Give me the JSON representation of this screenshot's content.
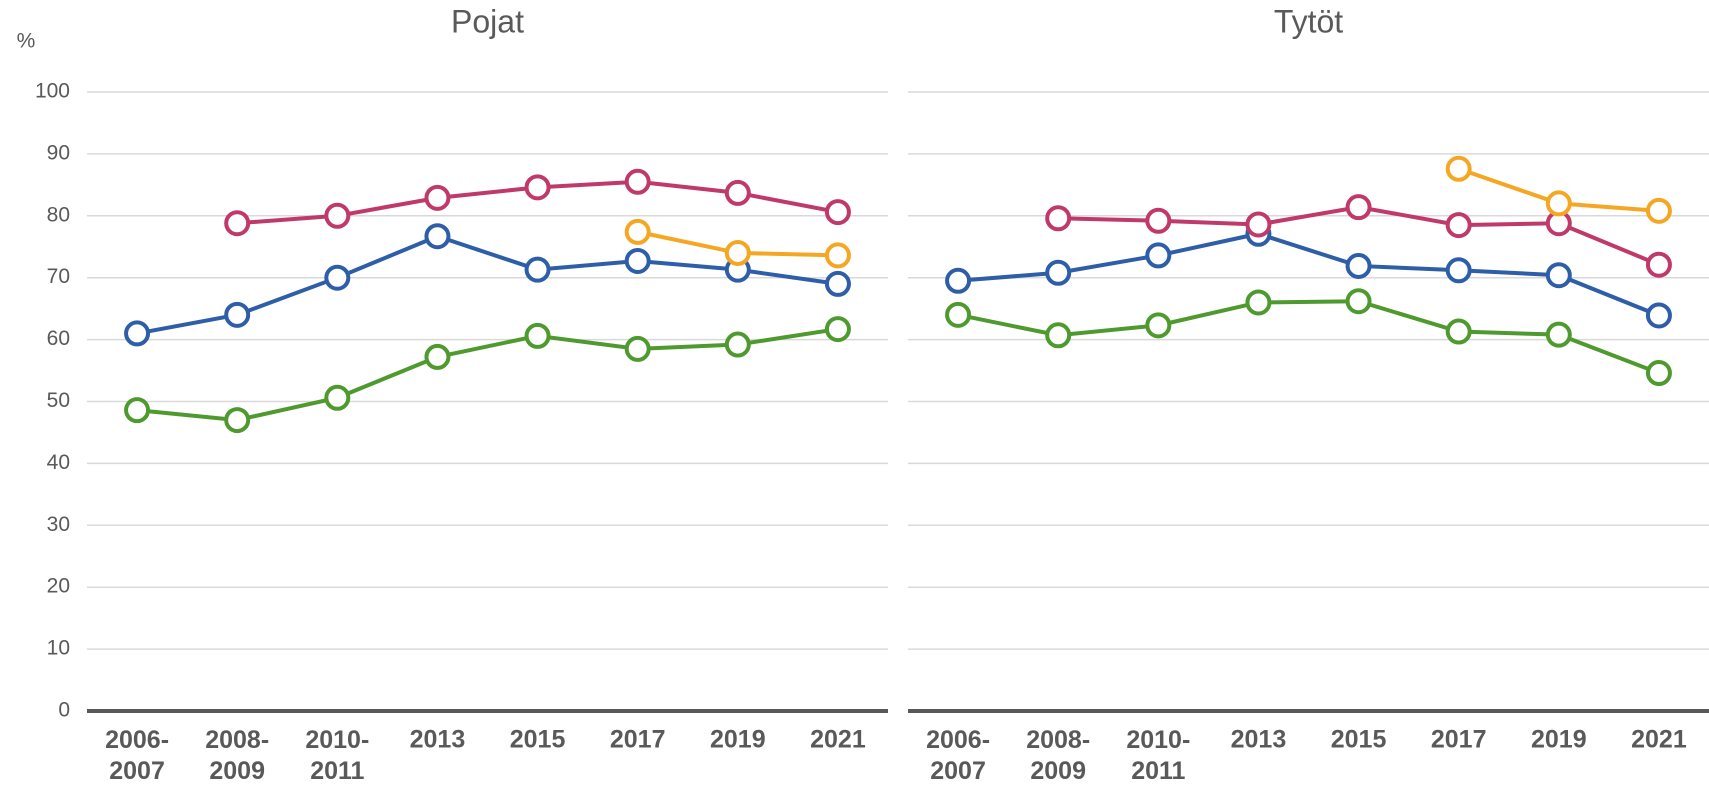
{
  "chart_data": [
    {
      "type": "line",
      "title": "Pojat",
      "y_label": "%",
      "categories": [
        "2006-\n2007",
        "2008-\n2009",
        "2010-\n2011",
        "2013",
        "2015",
        "2017",
        "2019",
        "2021"
      ],
      "ylim": [
        0,
        100
      ],
      "yticks": [
        0,
        10,
        20,
        30,
        40,
        50,
        60,
        70,
        80,
        90,
        100
      ],
      "grid": true,
      "series": [
        {
          "color": "#2e5ea8",
          "values": [
            61,
            64,
            70,
            76.7,
            71.3,
            72.7,
            71.3,
            69
          ]
        },
        {
          "color": "#c0396b",
          "values": [
            null,
            78.8,
            80,
            82.9,
            84.6,
            85.5,
            83.7,
            80.6
          ]
        },
        {
          "color": "#4e9a2e",
          "values": [
            48.6,
            47,
            50.6,
            57.2,
            60.6,
            58.5,
            59.2,
            61.7
          ]
        },
        {
          "color": "#f5a623",
          "values": [
            null,
            null,
            null,
            null,
            null,
            77.4,
            74,
            73.6
          ]
        }
      ]
    },
    {
      "type": "line",
      "title": "Tytöt",
      "categories": [
        "2006-\n2007",
        "2008-\n2009",
        "2010-\n2011",
        "2013",
        "2015",
        "2017",
        "2019",
        "2021"
      ],
      "ylim": [
        0,
        100
      ],
      "yticks": [
        0,
        10,
        20,
        30,
        40,
        50,
        60,
        70,
        80,
        90,
        100
      ],
      "grid": true,
      "series": [
        {
          "color": "#2e5ea8",
          "values": [
            69.5,
            70.8,
            73.6,
            77.1,
            71.9,
            71.2,
            70.4,
            63.9
          ]
        },
        {
          "color": "#c0396b",
          "values": [
            null,
            79.6,
            79.2,
            78.6,
            81.4,
            78.5,
            78.8,
            72.1
          ]
        },
        {
          "color": "#4e9a2e",
          "values": [
            64,
            60.7,
            62.3,
            66,
            66.2,
            61.3,
            60.8,
            54.6
          ]
        },
        {
          "color": "#f5a623",
          "values": [
            null,
            null,
            null,
            null,
            null,
            87.6,
            82,
            80.8
          ]
        }
      ]
    }
  ]
}
